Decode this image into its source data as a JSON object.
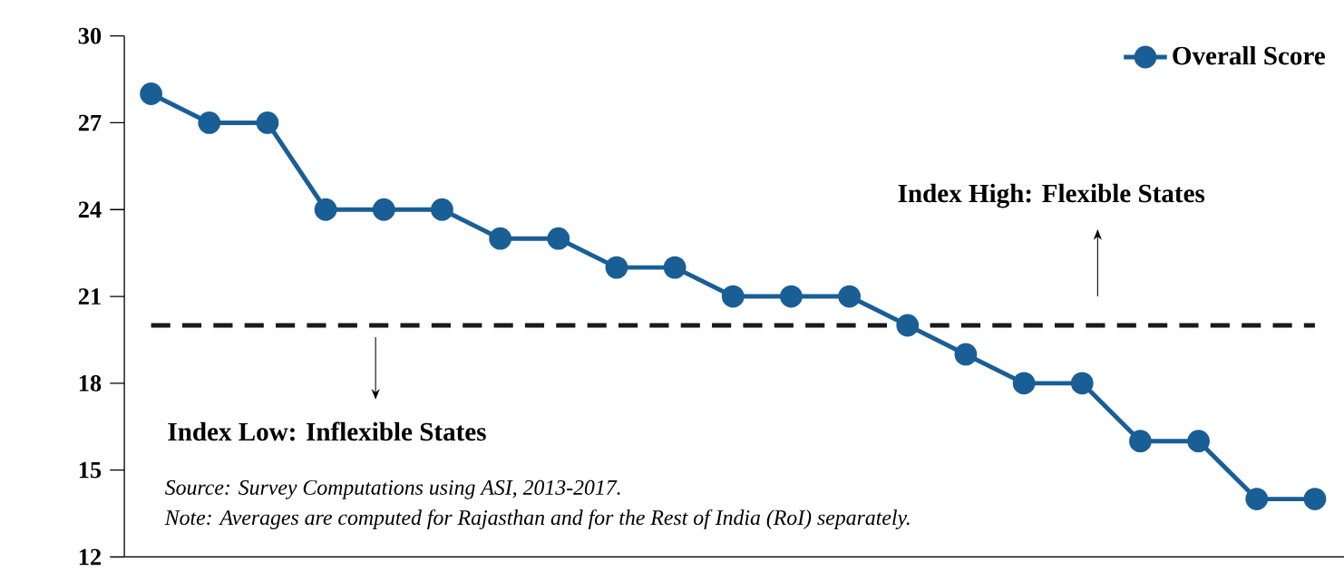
{
  "chart_data": {
    "type": "line",
    "categories": [
      null,
      null,
      null,
      null,
      null,
      null,
      null,
      null,
      null,
      null,
      null,
      null,
      null,
      null,
      null,
      null,
      null,
      null,
      null,
      null,
      null
    ],
    "series": [
      {
        "name": "Overall Score",
        "color": "#1a5e96",
        "values": [
          28,
          27,
          27,
          24,
          24,
          24,
          23,
          23,
          22,
          22,
          21,
          21,
          21,
          20,
          19,
          18,
          18,
          16,
          16,
          14,
          14
        ]
      }
    ],
    "ylim": [
      12,
      30
    ],
    "yticks": [
      12,
      15,
      18,
      21,
      24,
      27,
      30
    ],
    "ref_lines": [
      {
        "axis": "y",
        "value": 20,
        "color": "#1a1a1a",
        "line_style": "dashed"
      }
    ],
    "annotations": [
      "Index High: Flexible States",
      "Index Low: Inflexible States",
      "Source: Survey Computations using ASI, 2013-2017.",
      "Note: Averages are computed for Rajasthan and for the Rest of India (RoI) separately."
    ],
    "marker": "circle",
    "line_style": "solid",
    "legend": "top right",
    "grid": false,
    "tick_labels": "y"
  }
}
